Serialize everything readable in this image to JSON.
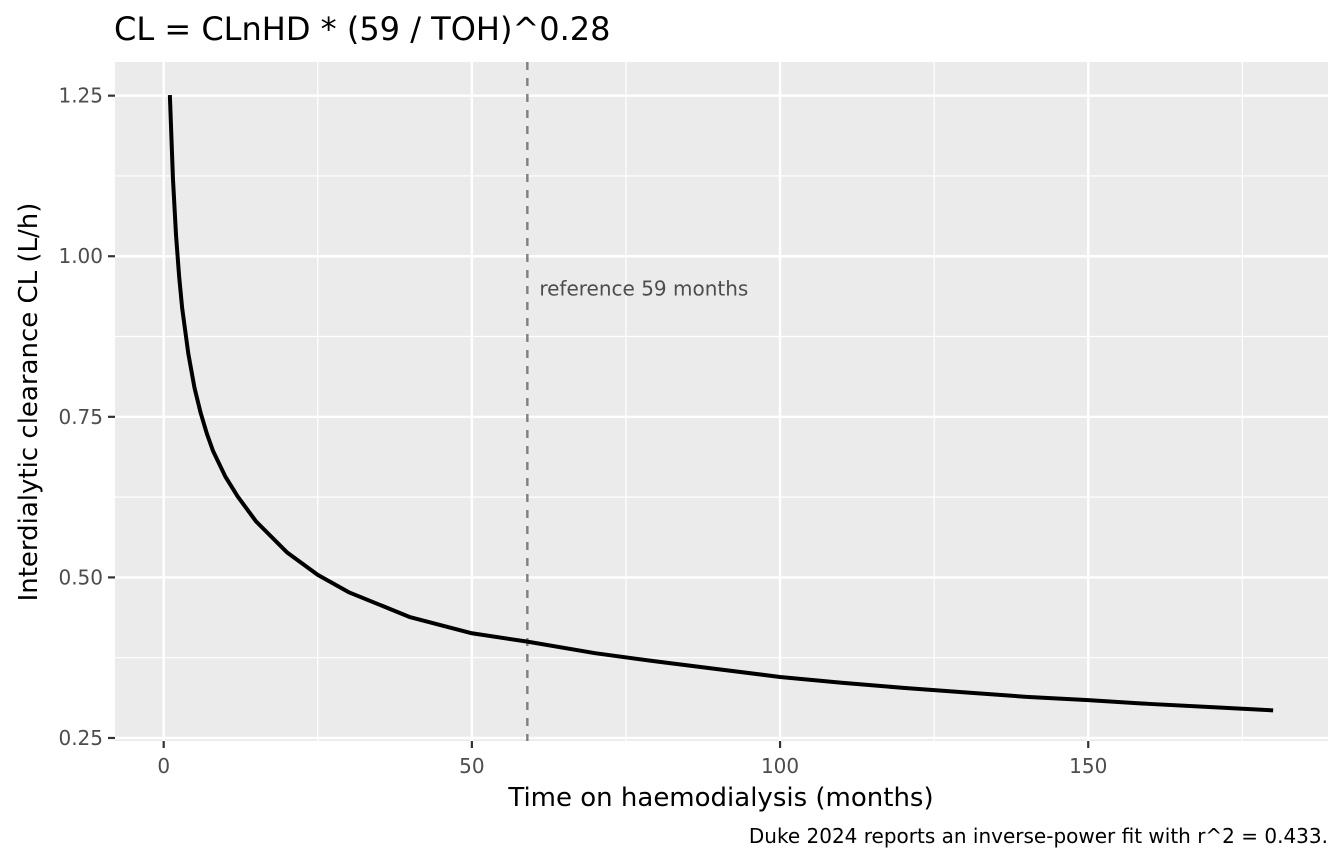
{
  "chart_data": {
    "type": "line",
    "title": "CL = CLnHD * (59 / TOH)^0.28",
    "xlabel": "Time on haemodialysis (months)",
    "ylabel": "Interdialytic clearance CL (L/h)",
    "caption": "Duke 2024 reports an inverse-power fit with r^2 = 0.433.",
    "xlim": [
      -7.9,
      188.9
    ],
    "ylim": [
      0.2453,
      1.3024
    ],
    "x_ticks": [
      0,
      50,
      100,
      150
    ],
    "x_tick_labels": [
      "0",
      "50",
      "100",
      "150"
    ],
    "y_ticks": [
      0.25,
      0.5,
      0.75,
      1.0,
      1.25
    ],
    "y_tick_labels": [
      "0.25",
      "0.50",
      "0.75",
      "1.00",
      "1.25"
    ],
    "grid": true,
    "background": "#ebebeb",
    "grid_color": "#ffffff",
    "series": [
      {
        "color": "#000000",
        "line_style": "solid",
        "x": [
          1,
          1.5,
          2,
          2.5,
          3,
          4,
          5,
          6,
          7,
          8,
          10,
          12,
          15,
          20,
          25,
          30,
          40,
          50,
          59,
          70,
          80,
          90,
          100,
          110,
          120,
          130,
          140,
          150,
          160,
          170,
          180
        ],
        "y": [
          1.251,
          1.121,
          1.033,
          0.969,
          0.919,
          0.848,
          0.795,
          0.756,
          0.724,
          0.697,
          0.657,
          0.626,
          0.587,
          0.539,
          0.504,
          0.477,
          0.438,
          0.413,
          0.4,
          0.382,
          0.369,
          0.357,
          0.345,
          0.336,
          0.328,
          0.321,
          0.314,
          0.309,
          0.303,
          0.298,
          0.293
        ]
      }
    ],
    "reference_line": {
      "x": 59,
      "color": "#808080",
      "line_style": "dashed",
      "label": "reference 59 months",
      "label_y": 0.95
    }
  }
}
